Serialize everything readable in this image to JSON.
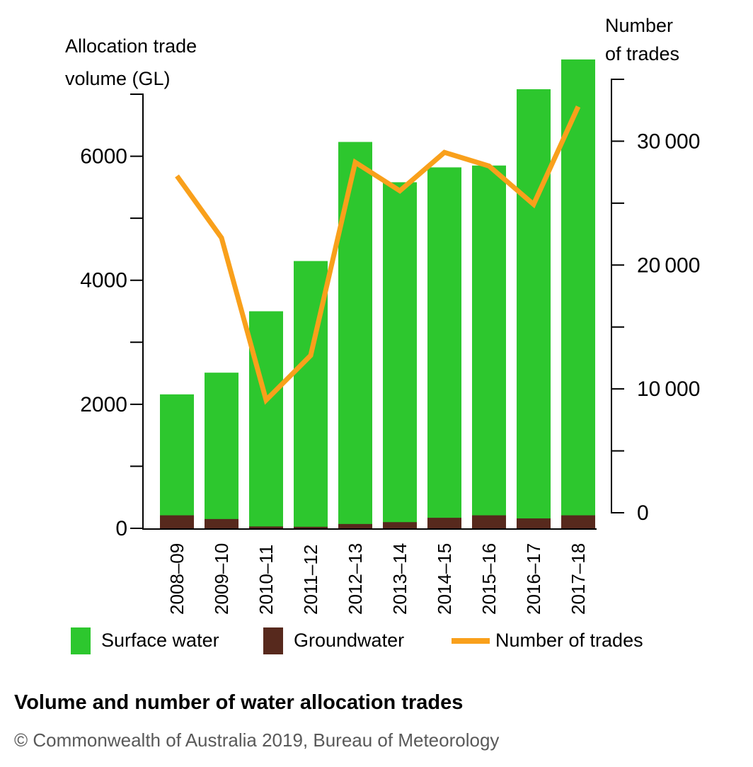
{
  "title": "Volume and number of water allocation trades",
  "footer": "© Commonwealth of Australia 2019, Bureau of Meteorology",
  "left_axis_title": {
    "line1": "Allocation trade",
    "line2": "volume (GL)"
  },
  "right_axis_title": {
    "line1": "Number",
    "line2": "of trades"
  },
  "colors": {
    "surface_water": "#2DC72E",
    "groundwater": "#57291D",
    "trades_line": "#F9A01B",
    "axis": "#000000",
    "footer_text": "#595959"
  },
  "legend": {
    "items": [
      {
        "label": "Surface water",
        "swatch": "green-square"
      },
      {
        "label": "Groundwater",
        "swatch": "brown-square"
      },
      {
        "label": "Number of trades",
        "swatch": "orange-line"
      }
    ]
  },
  "chart_data": {
    "type": "bar",
    "subtype": "stacked-bars-with-line",
    "title": "Volume and number of water allocation trades",
    "categories": [
      "2008–09",
      "2009–10",
      "2010–11",
      "2011–12",
      "2012–13",
      "2013–14",
      "2014–15",
      "2015–16",
      "2016–17",
      "2017–18"
    ],
    "series": [
      {
        "name": "Surface water",
        "type": "bar",
        "axis": "left",
        "color": "#2DC72E",
        "values": [
          1950,
          2360,
          3470,
          4285,
          6160,
          5480,
          5650,
          5640,
          6920,
          7350
        ]
      },
      {
        "name": "Groundwater",
        "type": "bar",
        "axis": "left",
        "color": "#57291D",
        "values": [
          210,
          150,
          30,
          25,
          70,
          100,
          170,
          210,
          160,
          210
        ]
      },
      {
        "name": "Number of trades",
        "type": "line",
        "axis": "right",
        "color": "#F9A01B",
        "values": [
          27200,
          22200,
          9100,
          12700,
          28300,
          26000,
          29100,
          28000,
          24900,
          32800
        ]
      }
    ],
    "stacked_totals": [
      2160,
      2510,
      3500,
      4310,
      6230,
      5580,
      5820,
      5850,
      7080,
      7560
    ],
    "left_axis": {
      "title": "Allocation trade volume (GL)",
      "min": 0,
      "max": 7000,
      "tick_interval": 1000,
      "label_interval": 2000,
      "tick_labels": [
        "0",
        "2000",
        "4000",
        "6000"
      ]
    },
    "right_axis": {
      "title": "Number of trades",
      "min": 0,
      "max": 35000,
      "tick_interval": 5000,
      "label_interval": 10000,
      "tick_labels": [
        "0",
        "10 000",
        "20 000",
        "30 000"
      ]
    },
    "grid": false,
    "legend_position": "bottom"
  }
}
